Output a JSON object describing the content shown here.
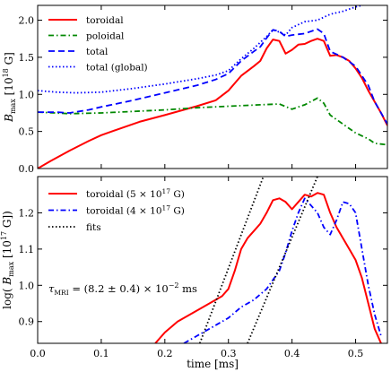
{
  "chart_data": [
    {
      "type": "line",
      "ylabel": "B_max [10^18 G]",
      "ylabel_parts": {
        "main": "B",
        "sub": "max",
        "unit_pre": " [10",
        "sup": "18",
        "unit_post": " G]"
      },
      "xlim": [
        0.0,
        0.55
      ],
      "ylim": [
        0.0,
        2.2
      ],
      "yticks": [
        0.0,
        0.5,
        1.0,
        1.5,
        2.0
      ],
      "ytick_labels": [
        "0.0",
        "0.5",
        "1.0",
        "1.5",
        "2.0"
      ],
      "grid": false,
      "legend_position": "top-left",
      "series": [
        {
          "name": "toroidal",
          "color": "#ff0000",
          "dash": "solid",
          "x": [
            0.0,
            0.02,
            0.05,
            0.08,
            0.1,
            0.13,
            0.16,
            0.2,
            0.25,
            0.28,
            0.3,
            0.32,
            0.34,
            0.35,
            0.36,
            0.37,
            0.38,
            0.39,
            0.4,
            0.41,
            0.42,
            0.43,
            0.44,
            0.45,
            0.455,
            0.46,
            0.47,
            0.48,
            0.49,
            0.5,
            0.51,
            0.52,
            0.53,
            0.54,
            0.55
          ],
          "y": [
            0.0,
            0.1,
            0.24,
            0.37,
            0.45,
            0.54,
            0.63,
            0.72,
            0.84,
            0.92,
            1.05,
            1.25,
            1.38,
            1.45,
            1.62,
            1.74,
            1.72,
            1.55,
            1.6,
            1.67,
            1.68,
            1.72,
            1.75,
            1.72,
            1.62,
            1.52,
            1.53,
            1.5,
            1.45,
            1.35,
            1.22,
            1.05,
            0.9,
            0.75,
            0.58
          ]
        },
        {
          "name": "poloidal",
          "color": "#008800",
          "dash": "dashdot",
          "x": [
            0.0,
            0.05,
            0.1,
            0.15,
            0.2,
            0.25,
            0.3,
            0.35,
            0.38,
            0.4,
            0.42,
            0.44,
            0.45,
            0.46,
            0.48,
            0.5,
            0.52,
            0.53,
            0.55
          ],
          "y": [
            0.76,
            0.74,
            0.75,
            0.77,
            0.79,
            0.82,
            0.84,
            0.86,
            0.87,
            0.8,
            0.86,
            0.95,
            0.88,
            0.72,
            0.6,
            0.48,
            0.4,
            0.34,
            0.32
          ]
        },
        {
          "name": "total",
          "color": "#0000ff",
          "dash": "dashed",
          "x": [
            0.0,
            0.03,
            0.05,
            0.08,
            0.1,
            0.15,
            0.2,
            0.25,
            0.28,
            0.3,
            0.32,
            0.34,
            0.35,
            0.36,
            0.37,
            0.38,
            0.39,
            0.4,
            0.42,
            0.44,
            0.45,
            0.455,
            0.46,
            0.48,
            0.5,
            0.52,
            0.53,
            0.55
          ],
          "y": [
            0.76,
            0.76,
            0.75,
            0.79,
            0.83,
            0.92,
            1.02,
            1.12,
            1.2,
            1.28,
            1.45,
            1.58,
            1.64,
            1.76,
            1.87,
            1.85,
            1.78,
            1.8,
            1.82,
            1.88,
            1.82,
            1.7,
            1.58,
            1.5,
            1.38,
            1.12,
            0.9,
            0.6
          ]
        },
        {
          "name": "total (global)",
          "color": "#0000ff",
          "dash": "dotted",
          "x": [
            0.0,
            0.03,
            0.06,
            0.1,
            0.15,
            0.2,
            0.25,
            0.28,
            0.3,
            0.32,
            0.34,
            0.36,
            0.37,
            0.38,
            0.39,
            0.4,
            0.42,
            0.44,
            0.46,
            0.48,
            0.5,
            0.52
          ],
          "y": [
            1.05,
            1.03,
            1.02,
            1.03,
            1.08,
            1.14,
            1.21,
            1.26,
            1.32,
            1.48,
            1.62,
            1.78,
            1.87,
            1.84,
            1.8,
            1.9,
            1.98,
            2.0,
            2.08,
            2.12,
            2.18,
            2.22
          ]
        }
      ]
    },
    {
      "type": "line",
      "xlabel": "time [ms]",
      "ylabel": "log( B_max [10^17 G])",
      "ylabel_parts": {
        "pre": "log( ",
        "main": "B",
        "sub": "max",
        "unit_pre": " [10",
        "sup": "17",
        "unit_post": " G])"
      },
      "xlim": [
        0.0,
        0.55
      ],
      "ylim": [
        0.84,
        1.3
      ],
      "xticks": [
        0.0,
        0.1,
        0.2,
        0.3,
        0.4,
        0.5
      ],
      "xtick_labels": [
        "0.0",
        "0.1",
        "0.2",
        "0.3",
        "0.4",
        "0.5"
      ],
      "yticks": [
        0.9,
        1.0,
        1.1,
        1.2
      ],
      "ytick_labels": [
        "0.9",
        "1.0",
        "1.1",
        "1.2"
      ],
      "grid": false,
      "legend_position": "top-left",
      "annotation": {
        "main": "τ",
        "sub": "MRI",
        "text": " = (8.2 ± 0.4) × 10",
        "sup": "−2",
        "post": " ms"
      },
      "series": [
        {
          "name": "toroidal (5 × 10^17 G)",
          "label_parts": {
            "pre": "toroidal (5 × 10",
            "sup": "17",
            "post": " G)"
          },
          "color": "#ff0000",
          "dash": "solid",
          "x": [
            0.185,
            0.2,
            0.22,
            0.25,
            0.27,
            0.29,
            0.3,
            0.31,
            0.32,
            0.33,
            0.34,
            0.35,
            0.36,
            0.37,
            0.38,
            0.39,
            0.4,
            0.41,
            0.42,
            0.43,
            0.44,
            0.45,
            0.46,
            0.47,
            0.48,
            0.49,
            0.5,
            0.51,
            0.52,
            0.53,
            0.54
          ],
          "y": [
            0.84,
            0.87,
            0.9,
            0.93,
            0.95,
            0.97,
            0.99,
            1.04,
            1.1,
            1.13,
            1.15,
            1.17,
            1.2,
            1.235,
            1.24,
            1.23,
            1.21,
            1.23,
            1.25,
            1.245,
            1.255,
            1.25,
            1.2,
            1.16,
            1.13,
            1.1,
            1.07,
            1.02,
            0.95,
            0.88,
            0.84
          ]
        },
        {
          "name": "toroidal (4 × 10^17 G)",
          "label_parts": {
            "pre": "toroidal (4 × 10",
            "sup": "17",
            "post": " G)"
          },
          "color": "#0000ff",
          "dash": "dashdot",
          "x": [
            0.23,
            0.25,
            0.27,
            0.3,
            0.32,
            0.34,
            0.36,
            0.38,
            0.39,
            0.4,
            0.41,
            0.42,
            0.43,
            0.44,
            0.45,
            0.46,
            0.47,
            0.48,
            0.49,
            0.5,
            0.51,
            0.52,
            0.53,
            0.54
          ],
          "y": [
            0.84,
            0.86,
            0.88,
            0.91,
            0.94,
            0.96,
            0.99,
            1.04,
            1.09,
            1.15,
            1.2,
            1.24,
            1.22,
            1.2,
            1.16,
            1.14,
            1.18,
            1.23,
            1.225,
            1.2,
            1.1,
            1.0,
            0.92,
            0.86
          ]
        },
        {
          "name": "fits",
          "color": "#000000",
          "dash": "dotted",
          "lines": [
            {
              "x": [
                0.255,
                0.355
              ],
              "y": [
                0.84,
                1.3
              ]
            },
            {
              "x": [
                0.33,
                0.44
              ],
              "y": [
                0.84,
                1.3
              ]
            }
          ]
        }
      ]
    }
  ]
}
